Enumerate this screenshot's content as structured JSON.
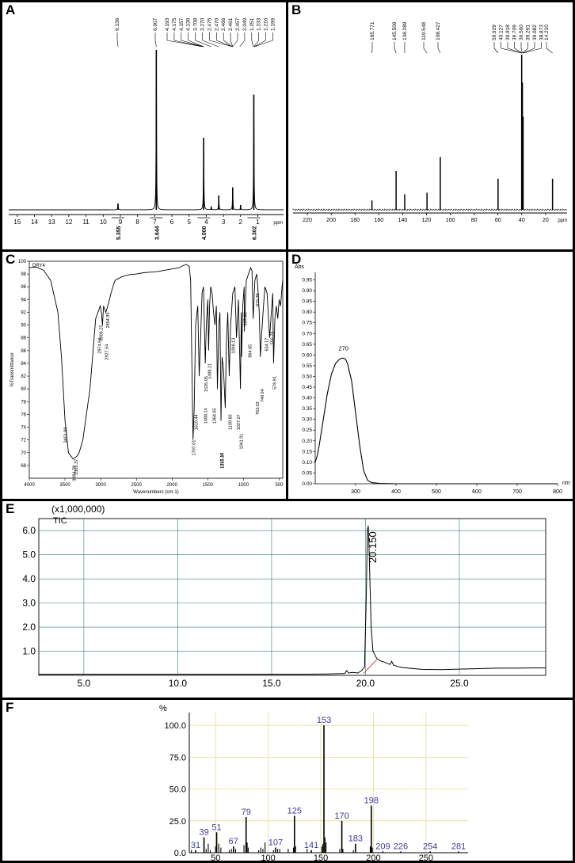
{
  "panels": {
    "a": {
      "label": "A"
    },
    "b": {
      "label": "B"
    },
    "c": {
      "label": "C"
    },
    "d": {
      "label": "D"
    },
    "e": {
      "label": "E"
    },
    "f": {
      "label": "F"
    }
  },
  "chart_data": [
    {
      "id": "A",
      "type": "line",
      "xlabel": "ppm",
      "xlim": [
        15.5,
        -0.5
      ],
      "x_ticks": [
        "15",
        "14",
        "13",
        "12",
        "11",
        "10",
        "9",
        "8",
        "7",
        "6",
        "5",
        "4",
        "3",
        "2",
        "1"
      ],
      "peaks": [
        {
          "x": 9.136,
          "y": 0.04
        },
        {
          "x": 6.907,
          "y": 1.0
        },
        {
          "x": 4.15,
          "y": 0.45
        },
        {
          "x": 3.708,
          "y": 0.02
        },
        {
          "x": 3.27,
          "y": 0.09
        },
        {
          "x": 2.46,
          "y": 0.14
        },
        {
          "x": 2.0,
          "y": 0.03
        },
        {
          "x": 1.23,
          "y": 0.72
        }
      ],
      "peak_labels": [
        "9.136",
        "6.907",
        "4.193",
        "4.175",
        "4.157",
        "4.139",
        "3.708",
        "3.270",
        "2.475",
        "2.470",
        "2.466",
        "2.461",
        "2.457",
        "2.049",
        "1.251",
        "1.233",
        "1.216",
        "1.199"
      ],
      "integrals": [
        {
          "x": 9.136,
          "label": "5.355"
        },
        {
          "x": 6.907,
          "label": "3.644"
        },
        {
          "x": 4.15,
          "label": "4.000"
        },
        {
          "x": 1.23,
          "label": "6.302"
        }
      ]
    },
    {
      "id": "B",
      "type": "line",
      "xlabel": "ppm",
      "xlim": [
        232,
        2
      ],
      "x_ticks": [
        "220",
        "200",
        "180",
        "160",
        "140",
        "120",
        "100",
        "80",
        "60",
        "40",
        "20"
      ],
      "peaks": [
        {
          "x": 165.771,
          "y": 0.06
        },
        {
          "x": 145.509,
          "y": 0.25
        },
        {
          "x": 138.289,
          "y": 0.1
        },
        {
          "x": 119.548,
          "y": 0.11
        },
        {
          "x": 108.427,
          "y": 0.34
        },
        {
          "x": 59.929,
          "y": 0.2
        },
        {
          "x": 40.1,
          "y": 1.0
        },
        {
          "x": 39.5,
          "y": 0.82
        },
        {
          "x": 38.9,
          "y": 0.6
        },
        {
          "x": 14.21,
          "y": 0.2
        }
      ],
      "peak_labels": [
        "165.771",
        "145.509",
        "138.289",
        "119.548",
        "108.427",
        "59.929",
        "40.127",
        "39.918",
        "39.709",
        "39.500",
        "39.291",
        "39.082",
        "38.873",
        "14.210"
      ]
    },
    {
      "id": "C",
      "type": "line",
      "xlabel": "Wavenumbers (cm-1)",
      "ylabel": "%Transmittance",
      "xlim": [
        4000,
        450
      ],
      "ylim": [
        66,
        100
      ],
      "curve_name": "DRY4",
      "x_ticks": [
        "4000",
        "3500",
        "3000",
        "2500",
        "2000",
        "1500",
        "1000",
        "500"
      ],
      "y_ticks": [
        "100",
        "98",
        "96",
        "94",
        "92",
        "90",
        "88",
        "86",
        "84",
        "82",
        "80",
        "78",
        "76",
        "74",
        "72",
        "70",
        "68"
      ],
      "band_labels": [
        "3451.99",
        "3384.79",
        "3302.37",
        "3006.25",
        "2974.84",
        "2927.54",
        "2854.95",
        "1707.01",
        "1619.44",
        "1535.05",
        "1488.14",
        "1488.21",
        "1364.85",
        "1315.16",
        "1255.37",
        "1199.60",
        "1098.13",
        "1041.91",
        "1027.27",
        "987.06",
        "864.65",
        "749.94",
        "763.03",
        "815.36",
        "634.17",
        "578.91",
        "556.76"
      ],
      "series": [
        {
          "name": "DRY4",
          "x": [
            4000,
            3900,
            3800,
            3700,
            3600,
            3550,
            3500,
            3452,
            3420,
            3385,
            3330,
            3302,
            3250,
            3150,
            3070,
            3006,
            2990,
            2975,
            2960,
            2928,
            2900,
            2855,
            2830,
            2800,
            2700,
            2600,
            2500,
            2400,
            2300,
            2200,
            2100,
            2000,
            1900,
            1850,
            1800,
            1760,
            1740,
            1720,
            1707,
            1690,
            1670,
            1640,
            1620,
            1600,
            1580,
            1560,
            1535,
            1520,
            1500,
            1488,
            1475,
            1460,
            1440,
            1420,
            1400,
            1380,
            1365,
            1345,
            1330,
            1315,
            1300,
            1280,
            1255,
            1240,
            1220,
            1200,
            1180,
            1150,
            1120,
            1098,
            1070,
            1042,
            1030,
            1027,
            1010,
            990,
            987,
            960,
            930,
            900,
            880,
            865,
            840,
            815,
            800,
            780,
            763,
            750,
            720,
            700,
            670,
            634,
            610,
            590,
            579,
            560,
            540,
            520,
            500,
            480,
            460,
            450
          ],
          "y": [
            99,
            99.1,
            98.6,
            97,
            92,
            85,
            75,
            70,
            69.5,
            69,
            69.5,
            70,
            72,
            80,
            91,
            93,
            92,
            90,
            93,
            92,
            93,
            95,
            96,
            97,
            97.6,
            97.9,
            98,
            98.2,
            98.3,
            98.4,
            98.6,
            98.8,
            99,
            99.3,
            99.5,
            99.2,
            97,
            82,
            72,
            77,
            90,
            93,
            82,
            88,
            95,
            96,
            84,
            90,
            94,
            86,
            93,
            96,
            95,
            92,
            90,
            93,
            80,
            90,
            92,
            75,
            85,
            83,
            77,
            87,
            92,
            82,
            90,
            95,
            96,
            88,
            94,
            80,
            92,
            85,
            93,
            96,
            89,
            97,
            98,
            99,
            98.5,
            91,
            97,
            98,
            96,
            92,
            85,
            88,
            93,
            96,
            95,
            88,
            92,
            95,
            84,
            91,
            93,
            91,
            94,
            93,
            96,
            97
          ]
        }
      ]
    },
    {
      "id": "D",
      "type": "line",
      "ylabel": "Abs",
      "xlabel": "nm",
      "xlim": [
        200,
        800
      ],
      "ylim": [
        0,
        1.0
      ],
      "x_ticks": [
        "300",
        "400",
        "500",
        "600",
        "700",
        "800"
      ],
      "y_ticks": [
        "0.95",
        "0.90",
        "0.85",
        "0.80",
        "0.75",
        "0.70",
        "0.65",
        "0.60",
        "0.55",
        "0.50",
        "0.45",
        "0.40",
        "0.35",
        "0.30",
        "0.25",
        "0.20",
        "0.15",
        "0.10",
        "0.05",
        "0.00"
      ],
      "peak_label": "270",
      "series": [
        {
          "x": [
            200,
            205,
            210,
            220,
            230,
            240,
            250,
            260,
            265,
            270,
            275,
            280,
            290,
            300,
            310,
            320,
            330,
            340,
            360,
            400,
            500,
            600,
            700,
            800
          ],
          "y": [
            0.1,
            0.13,
            0.18,
            0.3,
            0.42,
            0.51,
            0.56,
            0.58,
            0.585,
            0.585,
            0.58,
            0.56,
            0.48,
            0.33,
            0.18,
            0.06,
            0.015,
            0.005,
            0.002,
            0.0,
            0.0,
            0.0,
            0.0,
            0.0
          ]
        }
      ]
    },
    {
      "id": "E",
      "type": "line",
      "ylabel": "(x1,000,000)",
      "trace_label": "TIC",
      "xlim": [
        2.6,
        29.6
      ],
      "ylim": [
        0,
        6.5
      ],
      "x_ticks": [
        "5.0",
        "10.0",
        "15.0",
        "20.0",
        "25.0"
      ],
      "y_ticks": [
        "6.0",
        "5.0",
        "4.0",
        "3.0",
        "2.0",
        "1.0"
      ],
      "peak_label": "20.150",
      "series": [
        {
          "name": "TIC",
          "x": [
            2.6,
            5,
            10,
            15,
            17,
            18,
            18.9,
            19.0,
            19.1,
            19.3,
            19.6,
            19.8,
            19.95,
            20.05,
            20.1,
            20.15,
            20.2,
            20.3,
            20.4,
            20.6,
            20.8,
            21,
            21.3,
            21.4,
            21.5,
            21.8,
            22,
            23,
            24,
            25,
            26,
            27,
            28,
            29,
            29.6
          ],
          "y": [
            0.05,
            0.05,
            0.05,
            0.05,
            0.05,
            0.06,
            0.08,
            0.2,
            0.1,
            0.12,
            0.1,
            0.2,
            0.35,
            3.5,
            6.0,
            6.2,
            5.0,
            2.0,
            1.0,
            0.7,
            0.6,
            0.55,
            0.45,
            0.58,
            0.42,
            0.35,
            0.32,
            0.25,
            0.24,
            0.26,
            0.28,
            0.3,
            0.3,
            0.31,
            0.31
          ]
        }
      ]
    },
    {
      "id": "F",
      "type": "bar",
      "ylabel": "%",
      "xlim": [
        25,
        290
      ],
      "ylim": [
        0,
        110
      ],
      "x_ticks": [
        "50",
        "100",
        "150",
        "200",
        "250"
      ],
      "y_ticks": [
        "0.0",
        "25.0",
        "50.0",
        "75.0",
        "100.0"
      ],
      "labeled_peaks": [
        {
          "x": 31,
          "y": 2,
          "label": "31"
        },
        {
          "x": 39,
          "y": 12,
          "label": "39"
        },
        {
          "x": 51,
          "y": 16,
          "label": "51"
        },
        {
          "x": 67,
          "y": 5,
          "label": "67"
        },
        {
          "x": 79,
          "y": 28,
          "label": "79"
        },
        {
          "x": 107,
          "y": 4,
          "label": "107"
        },
        {
          "x": 125,
          "y": 29,
          "label": "125"
        },
        {
          "x": 141,
          "y": 2,
          "label": "141"
        },
        {
          "x": 153,
          "y": 100,
          "label": "153"
        },
        {
          "x": 170,
          "y": 25,
          "label": "170"
        },
        {
          "x": 183,
          "y": 7,
          "label": "183"
        },
        {
          "x": 198,
          "y": 37,
          "label": "198"
        },
        {
          "x": 209,
          "y": 1,
          "label": "209"
        },
        {
          "x": 226,
          "y": 1,
          "label": "226"
        },
        {
          "x": 254,
          "y": 1,
          "label": "254"
        },
        {
          "x": 281,
          "y": 1,
          "label": "281"
        }
      ],
      "minor_peaks": [
        {
          "x": 27,
          "y": 2
        },
        {
          "x": 41,
          "y": 3
        },
        {
          "x": 43,
          "y": 7
        },
        {
          "x": 45,
          "y": 2
        },
        {
          "x": 50,
          "y": 5
        },
        {
          "x": 53,
          "y": 7
        },
        {
          "x": 55,
          "y": 4
        },
        {
          "x": 63,
          "y": 2
        },
        {
          "x": 65,
          "y": 3
        },
        {
          "x": 69,
          "y": 3
        },
        {
          "x": 77,
          "y": 6
        },
        {
          "x": 80,
          "y": 8
        },
        {
          "x": 81,
          "y": 4
        },
        {
          "x": 91,
          "y": 2
        },
        {
          "x": 93,
          "y": 4
        },
        {
          "x": 95,
          "y": 3
        },
        {
          "x": 97,
          "y": 8
        },
        {
          "x": 105,
          "y": 2
        },
        {
          "x": 109,
          "y": 3
        },
        {
          "x": 111,
          "y": 3
        },
        {
          "x": 119,
          "y": 3
        },
        {
          "x": 124,
          "y": 4
        },
        {
          "x": 126,
          "y": 5
        },
        {
          "x": 137,
          "y": 3
        },
        {
          "x": 151,
          "y": 5
        },
        {
          "x": 152,
          "y": 7
        },
        {
          "x": 154,
          "y": 12
        },
        {
          "x": 155,
          "y": 8
        },
        {
          "x": 168,
          "y": 3
        },
        {
          "x": 171,
          "y": 3
        },
        {
          "x": 181,
          "y": 2
        },
        {
          "x": 197,
          "y": 5
        },
        {
          "x": 199,
          "y": 4
        }
      ]
    }
  ]
}
